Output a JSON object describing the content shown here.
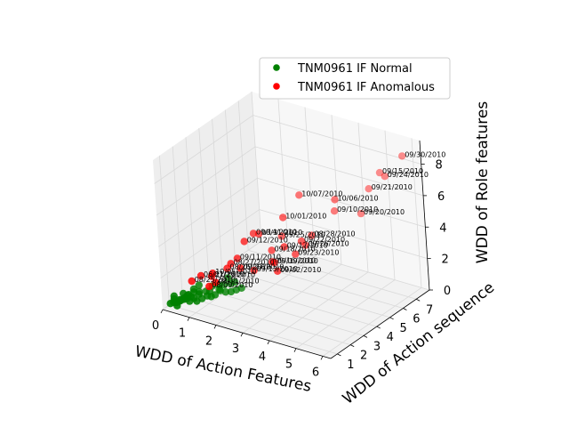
{
  "chart_data": {
    "type": "scatter",
    "projection": "3d",
    "xlabel": "WDD of Action Features",
    "ylabel": "WDD of Action sequence",
    "zlabel": "WDD of Role features",
    "xlim": [
      0,
      6.3
    ],
    "ylim": [
      0.5,
      8
    ],
    "zlim": [
      0,
      9.5
    ],
    "xticks": [
      "0",
      "1",
      "2",
      "3",
      "4",
      "5",
      "6"
    ],
    "yticks": [
      "1",
      "2",
      "3",
      "4",
      "5",
      "6",
      "7"
    ],
    "zticks": [
      "0",
      "2",
      "4",
      "6",
      "8"
    ],
    "grid": true,
    "legend_position": "top-right",
    "colors": {
      "normal": "#008000",
      "anomalous": "#ff0000",
      "pane": "#f2f2f2",
      "grid": "#d9d9d9"
    },
    "series": [
      {
        "name": "TNM0961 IF Normal",
        "color": "#008000",
        "x": [
          0.1,
          0.2,
          0.3,
          0.15,
          0.25,
          0.35,
          0.1,
          0.2,
          0.4,
          0.3,
          0.5,
          0.2,
          0.45,
          0.6,
          0.35,
          0.25,
          0.55,
          0.4,
          0.7,
          0.3,
          0.5,
          0.65,
          0.45,
          0.8,
          0.6,
          0.75,
          0.9,
          0.5,
          1.0,
          0.7,
          0.95,
          1.1,
          0.85,
          1.2,
          1.0,
          1.3,
          0.9,
          1.4,
          1.15,
          1.5,
          1.25,
          1.05,
          1.6,
          1.35,
          1.7
        ],
        "y": [
          0.9,
          0.95,
          1.0,
          1.1,
          1.05,
          1.15,
          1.2,
          1.25,
          1.0,
          1.3,
          1.1,
          1.4,
          1.35,
          1.2,
          1.5,
          1.6,
          1.45,
          1.7,
          1.3,
          1.8,
          1.9,
          1.6,
          2.0,
          1.5,
          2.1,
          1.8,
          1.7,
          2.3,
          1.9,
          2.4,
          2.2,
          2.0,
          2.6,
          2.1,
          2.8,
          2.3,
          3.0,
          2.5,
          2.9,
          2.7,
          3.2,
          3.4,
          2.9,
          3.3,
          3.1
        ],
        "z": [
          0.2,
          0.3,
          0.1,
          0.4,
          0.25,
          0.35,
          0.5,
          0.15,
          0.45,
          0.3,
          0.55,
          0.2,
          0.4,
          0.6,
          0.35,
          0.5,
          0.25,
          0.45,
          0.7,
          0.3,
          0.55,
          0.4,
          0.65,
          0.35,
          0.5,
          0.6,
          0.45,
          0.75,
          0.55,
          0.4,
          0.65,
          0.5,
          0.7,
          0.6,
          0.45,
          0.8,
          0.55,
          0.65,
          0.75,
          0.6,
          0.7,
          0.85,
          0.65,
          0.8,
          0.7
        ]
      },
      {
        "name": "TNM0961 IF Anomalous",
        "color": "#ff0000",
        "x": [
          5.8,
          5.3,
          4.9,
          4.6,
          4.4,
          3.8,
          3.6,
          3.3,
          3.2,
          3.0,
          2.5,
          2.3,
          2.1,
          1.6,
          1.5,
          1.5,
          2.0,
          2.7,
          2.9,
          2.6,
          2.7,
          2.2,
          1.3,
          1.6,
          1.8,
          1.2,
          1.4,
          1.0,
          0.6,
          0.5,
          0.9,
          1.1,
          1.3
        ],
        "y": [
          7.6,
          7.2,
          7.6,
          7.3,
          7.0,
          6.3,
          6.6,
          5.4,
          5.1,
          5.2,
          6.2,
          5.3,
          5.5,
          4.8,
          3.9,
          4.6,
          4.9,
          4.5,
          4.9,
          3.9,
          3.9,
          4.5,
          3.2,
          3.3,
          3.9,
          3.1,
          3.5,
          2.4,
          2.3,
          1.8,
          2.5,
          1.9,
          2.0
        ],
        "z": [
          8.5,
          7.2,
          7.0,
          6.0,
          4.5,
          5.5,
          4.5,
          3.5,
          3.0,
          3.1,
          5.2,
          4.2,
          2.8,
          3.1,
          3.1,
          3.2,
          2.2,
          3.0,
          2.4,
          2.3,
          1.8,
          1.8,
          2.0,
          1.8,
          1.4,
          1.7,
          2.2,
          1.7,
          1.4,
          1.3,
          1.4,
          1.2,
          1.5
        ],
        "labels": [
          "09/30/2010",
          "09/24/2010",
          "09/15/2010",
          "09/21/2010",
          "09/20/2010",
          "10/06/2010",
          "09/10/2010",
          "08/28/2010",
          "09/26/2010",
          "09/22/2010",
          "10/07/2010",
          "10/01/2010",
          "09/25/2010",
          "08/31/2010",
          "09/12/2010",
          "09/14/2010",
          "09/18/2010",
          "09/17/2010",
          "09/23/2010",
          "09/19/2010",
          "09/02/2010",
          "09/16/2010",
          "08/27/2010",
          "09/27/2010",
          "09/13/2010",
          "08/26/2010",
          "09/11/2010",
          "10/05/2010",
          "06/21/2010",
          "08/25/2010",
          "07/29/2010",
          "08/09/2010",
          "08/11/2010"
        ]
      }
    ]
  }
}
